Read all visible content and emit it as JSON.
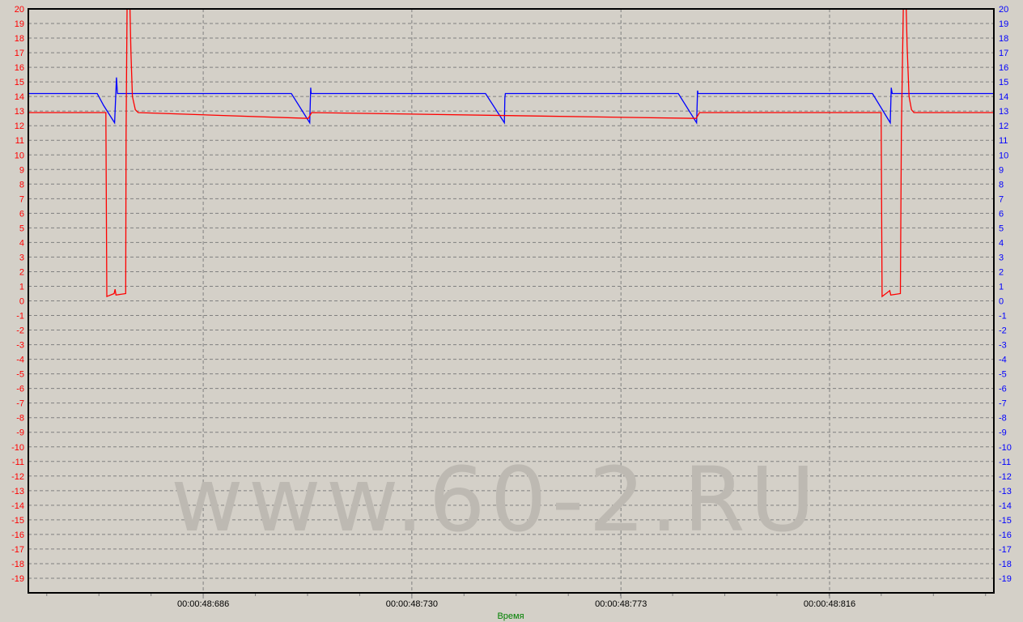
{
  "chart_data": {
    "type": "line",
    "xlabel": "Время",
    "xlabel_color": "#008000",
    "x_unit": "ms after 00:00:48",
    "xlim": [
      649.7,
      850.1
    ],
    "x_ticks": [
      {
        "value": 686.0,
        "label": "00:00:48:686"
      },
      {
        "value": 729.3,
        "label": "00:00:48:730"
      },
      {
        "value": 772.7,
        "label": "00:00:48:773"
      },
      {
        "value": 816.0,
        "label": "00:00:48:816"
      }
    ],
    "ylim": [
      -20,
      20
    ],
    "y_ticks": [
      20,
      19,
      18,
      17,
      16,
      15,
      14,
      13,
      12,
      11,
      10,
      9,
      8,
      7,
      6,
      5,
      4,
      3,
      2,
      1,
      0,
      -1,
      -2,
      -3,
      -4,
      -5,
      -6,
      -7,
      -8,
      -9,
      -10,
      -11,
      -12,
      -13,
      -14,
      -15,
      -16,
      -17,
      -18,
      -19
    ],
    "grid": true,
    "background": "#d4d0c8",
    "left_axis_color": "#ff0000",
    "right_axis_color": "#0000ff",
    "watermark": "www.60-2.RU",
    "series": [
      {
        "color": "#0000ff",
        "axis": "right",
        "points": [
          [
            649.7,
            14.2
          ],
          [
            664.0,
            14.2
          ],
          [
            665.3,
            13.4
          ],
          [
            667.6,
            12.2
          ],
          [
            667.8,
            13.8
          ],
          [
            668.0,
            15.3
          ],
          [
            668.2,
            14.2
          ],
          [
            704.3,
            14.2
          ],
          [
            708.1,
            12.2
          ],
          [
            708.3,
            14.6
          ],
          [
            708.4,
            14.2
          ],
          [
            744.6,
            14.2
          ],
          [
            748.5,
            12.2
          ],
          [
            748.6,
            13.9
          ],
          [
            748.7,
            14.2
          ],
          [
            784.6,
            14.2
          ],
          [
            788.4,
            12.2
          ],
          [
            788.6,
            14.4
          ],
          [
            788.7,
            14.2
          ],
          [
            824.9,
            14.2
          ],
          [
            828.6,
            12.2
          ],
          [
            828.8,
            14.6
          ],
          [
            829.0,
            14.2
          ],
          [
            850.1,
            14.2
          ]
        ]
      },
      {
        "color": "#ff0000",
        "axis": "left",
        "points": [
          [
            649.7,
            12.9
          ],
          [
            665.8,
            12.9
          ],
          [
            665.9,
            6.5
          ],
          [
            666.0,
            0.3
          ],
          [
            667.5,
            0.5
          ],
          [
            667.7,
            0.8
          ],
          [
            667.9,
            0.4
          ],
          [
            669.9,
            0.5
          ],
          [
            670.0,
            11.5
          ],
          [
            670.2,
            20
          ],
          [
            670.8,
            20
          ],
          [
            671.0,
            17
          ],
          [
            671.3,
            14
          ],
          [
            671.9,
            13.1
          ],
          [
            672.5,
            12.9
          ],
          [
            707.8,
            12.5
          ],
          [
            708.5,
            12.9
          ],
          [
            788.3,
            12.5
          ],
          [
            789.0,
            12.9
          ],
          [
            826.7,
            12.9
          ],
          [
            826.8,
            6.5
          ],
          [
            826.9,
            0.3
          ],
          [
            828.5,
            0.7
          ],
          [
            828.7,
            0.4
          ],
          [
            830.7,
            0.5
          ],
          [
            830.9,
            11.5
          ],
          [
            831.3,
            20
          ],
          [
            831.9,
            20
          ],
          [
            832.1,
            17.5
          ],
          [
            832.5,
            14
          ],
          [
            833.0,
            13.1
          ],
          [
            833.5,
            12.9
          ],
          [
            850.1,
            12.9
          ]
        ]
      }
    ]
  }
}
